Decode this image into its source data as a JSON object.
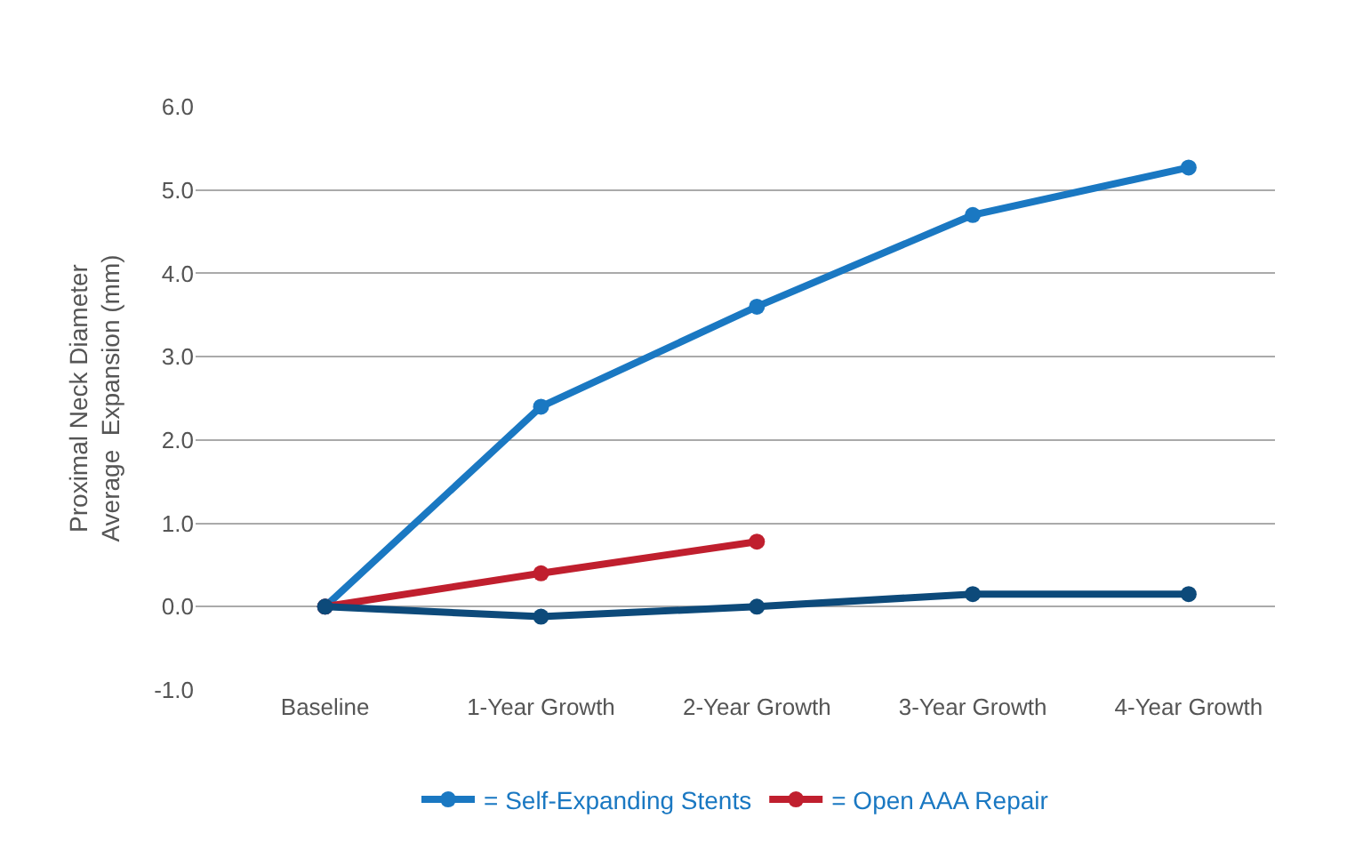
{
  "chart_data": {
    "type": "line",
    "ylabel": "Proximal Neck Diameter\nAverage  Expansion (mm)",
    "categories": [
      "Baseline",
      "1-Year Growth",
      "2-Year Growth",
      "3-Year Growth",
      "4-Year Growth"
    ],
    "series": [
      {
        "name": "= Self-Expanding Stents",
        "color": "#1a78c2",
        "values": [
          0,
          2.4,
          3.6,
          4.7,
          5.27
        ]
      },
      {
        "name": "= Open AAA Repair",
        "color": "#c01f2e",
        "values": [
          0,
          0.4,
          0.78,
          null,
          null
        ]
      },
      {
        "color": "#0d4a7a",
        "values": [
          0,
          -0.12,
          0,
          0.15,
          0.15
        ]
      }
    ],
    "ylim": [
      -1.0,
      6.0
    ],
    "yticks": [
      {
        "value": -1,
        "label": "-1.0"
      },
      {
        "value": 0,
        "label": "0.0"
      },
      {
        "value": 1,
        "label": "1.0"
      },
      {
        "value": 2,
        "label": "2.0"
      },
      {
        "value": 3,
        "label": "3.0"
      },
      {
        "value": 4,
        "label": "4.0"
      },
      {
        "value": 5,
        "label": "5.0"
      },
      {
        "value": 6,
        "label": "6.0"
      }
    ],
    "grid": "y",
    "legend": "bottom",
    "marker": "circle",
    "line_style": "solid"
  }
}
